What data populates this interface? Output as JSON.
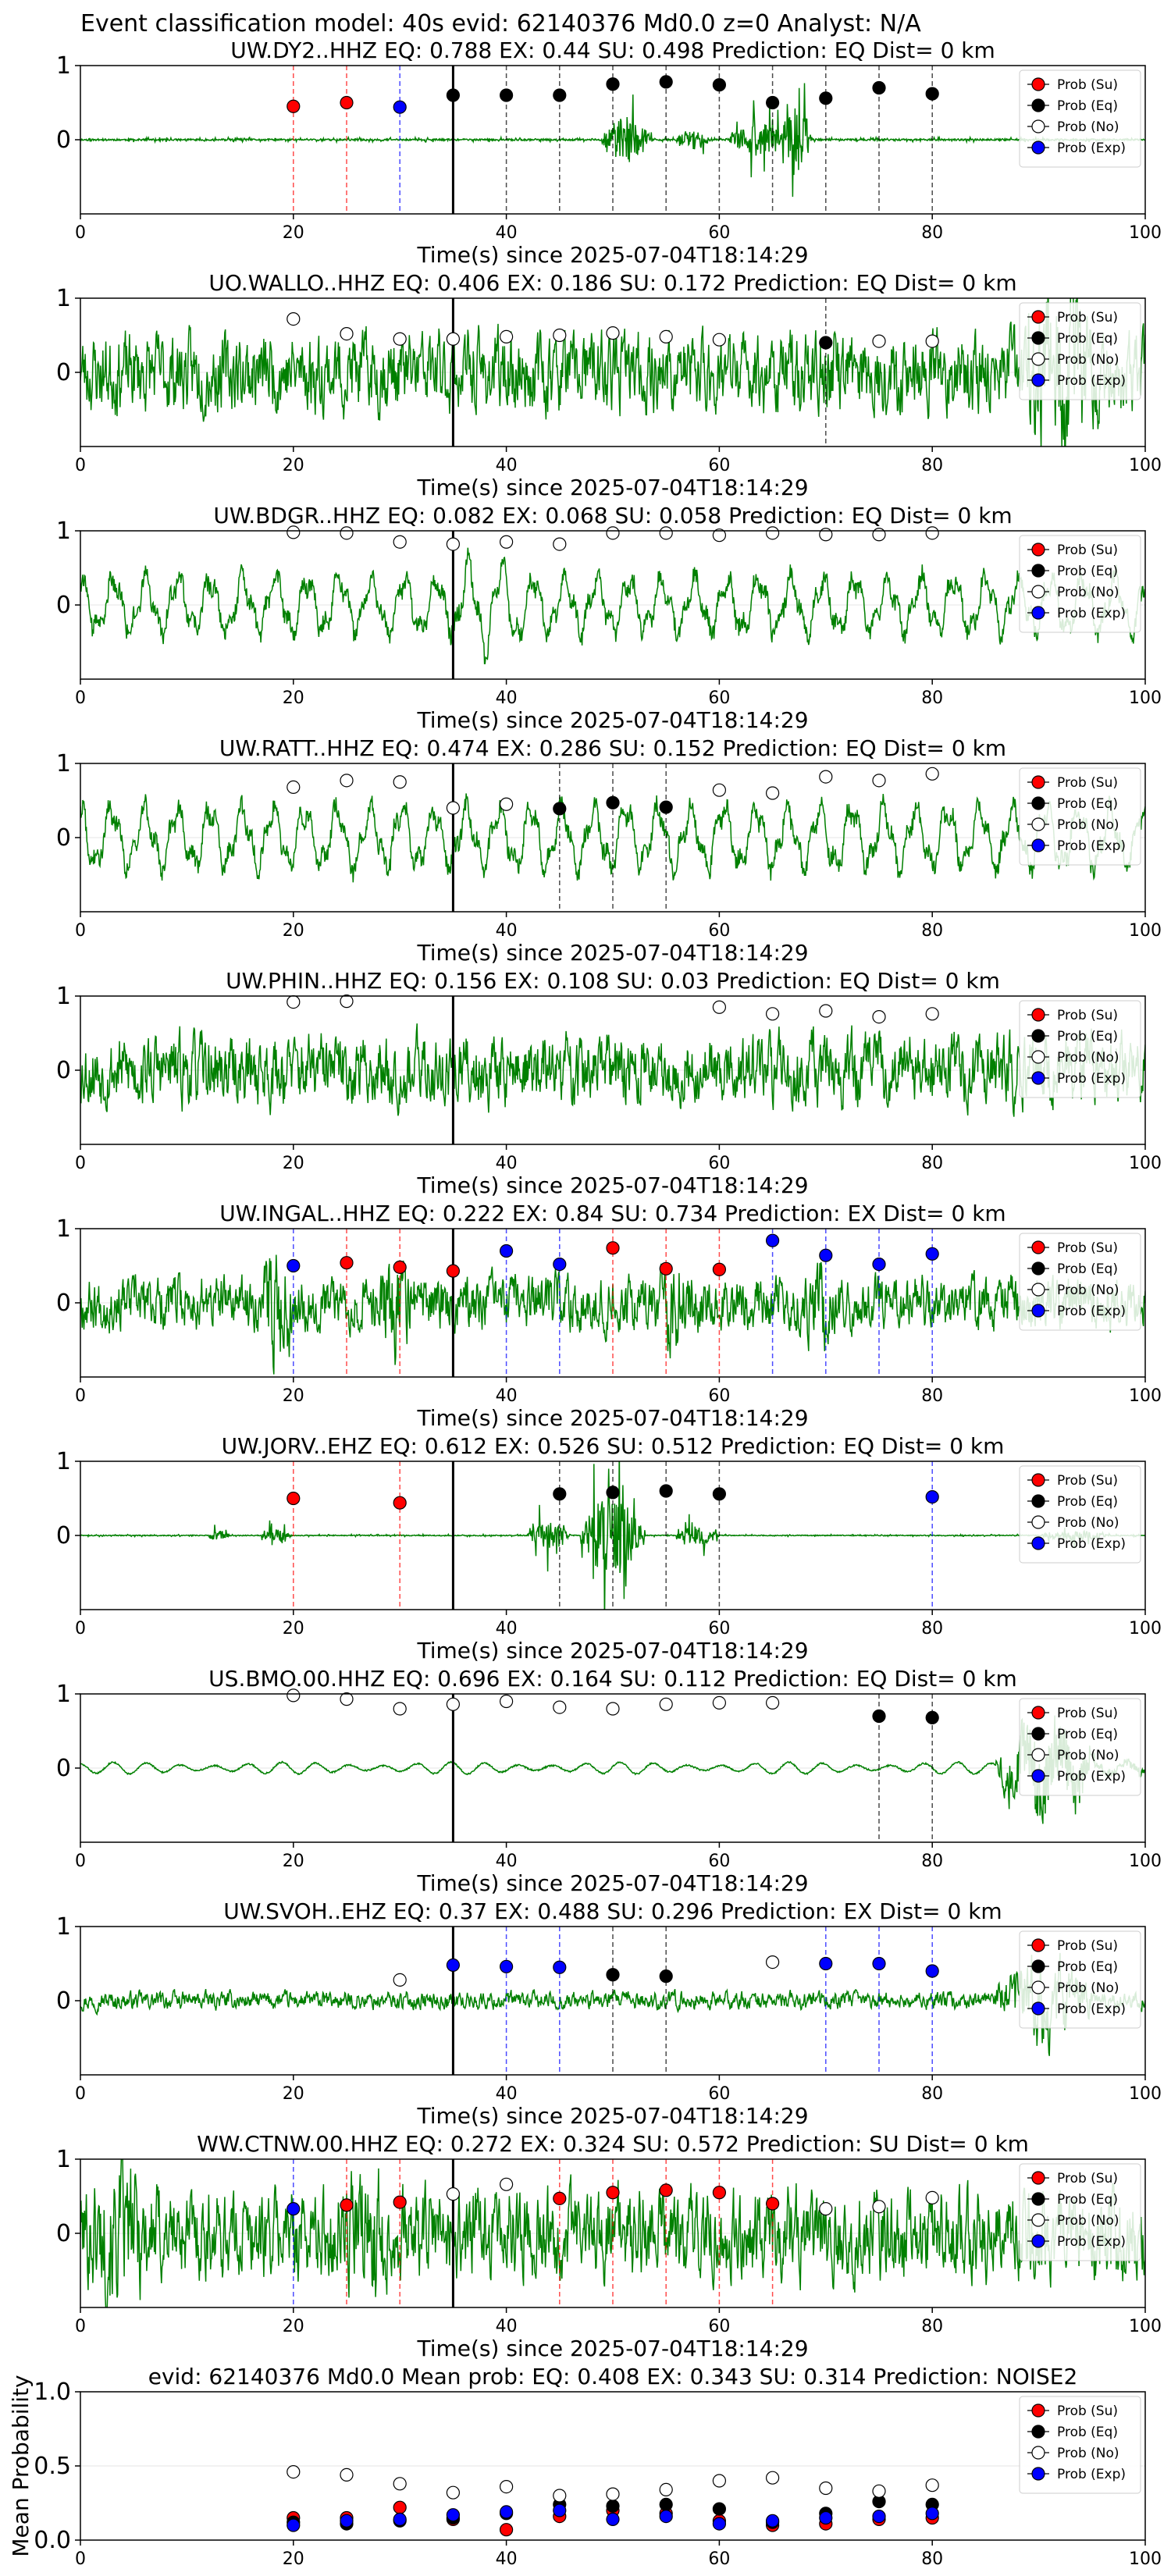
{
  "figure": {
    "suptitle": "Event classification model: 40s evid: 62140376 Md0.0 z=0 Analyst: N/A",
    "xlabel": "Time(s) since 2025-07-04T18:14:29"
  },
  "legend_labels": [
    "Prob (Su)",
    "Prob (Eq)",
    "Prob (No)",
    "Prob (Exp)"
  ],
  "colors": {
    "su": "#ff0000",
    "eq": "#000000",
    "no": "#ffffff",
    "exp": "#0000ff",
    "waveform": "#008000",
    "grid": "#e6e6e6"
  },
  "chart_data": [
    {
      "type": "line",
      "station": "UW.DY2..HHZ",
      "title": "UW.DY2..HHZ   EQ: 0.788  EX: 0.44  SU: 0.498   Prediction: EQ    Dist= 0 km",
      "xlim": [
        0,
        100
      ],
      "ylim": [
        -1,
        1
      ],
      "yticks": [
        0,
        1
      ],
      "xticks": [
        0,
        20,
        40,
        60,
        80,
        100
      ],
      "pick_time": 35,
      "waveform": {
        "style": "impulsive",
        "seed": 11,
        "base": 0.02,
        "events": [
          [
            49,
            56,
            0.5
          ],
          [
            56,
            61,
            0.2
          ],
          [
            61,
            70,
            0.35
          ],
          [
            66,
            70,
            0.9
          ]
        ]
      },
      "points": [
        [
          20,
          0.45,
          "su"
        ],
        [
          25,
          0.5,
          "su"
        ],
        [
          30,
          0.44,
          "exp"
        ],
        [
          35,
          0.6,
          "eq"
        ],
        [
          40,
          0.6,
          "eq"
        ],
        [
          45,
          0.6,
          "eq"
        ],
        [
          50,
          0.75,
          "eq"
        ],
        [
          55,
          0.78,
          "eq"
        ],
        [
          60,
          0.74,
          "eq"
        ],
        [
          65,
          0.5,
          "eq"
        ],
        [
          70,
          0.56,
          "eq"
        ],
        [
          75,
          0.7,
          "eq"
        ],
        [
          80,
          0.62,
          "eq"
        ]
      ]
    },
    {
      "type": "line",
      "station": "UO.WALLO..HHZ",
      "title": "UO.WALLO..HHZ   EQ: 0.406  EX: 0.186  SU: 0.172   Prediction: EQ    Dist= 0 km",
      "xlim": [
        0,
        100
      ],
      "ylim": [
        -1,
        1
      ],
      "yticks": [
        0,
        1
      ],
      "xticks": [
        0,
        20,
        40,
        60,
        80,
        100
      ],
      "pick_time": 35,
      "waveform": {
        "style": "noisy",
        "seed": 23,
        "base": 0.45,
        "events": [
          [
            88,
            100,
            0.5
          ]
        ]
      },
      "points": [
        [
          20,
          0.72,
          "no"
        ],
        [
          25,
          0.52,
          "no"
        ],
        [
          30,
          0.45,
          "no"
        ],
        [
          35,
          0.45,
          "no"
        ],
        [
          40,
          0.48,
          "no"
        ],
        [
          45,
          0.5,
          "no"
        ],
        [
          50,
          0.53,
          "no"
        ],
        [
          55,
          0.48,
          "no"
        ],
        [
          60,
          0.44,
          "no"
        ],
        [
          70,
          0.4,
          "eq"
        ],
        [
          75,
          0.42,
          "no"
        ],
        [
          80,
          0.42,
          "no"
        ]
      ]
    },
    {
      "type": "line",
      "station": "UW.BDGR..HHZ",
      "title": "UW.BDGR..HHZ   EQ: 0.082  EX: 0.068  SU: 0.058   Prediction: EQ    Dist= 0 km",
      "xlim": [
        0,
        100
      ],
      "ylim": [
        -1,
        1
      ],
      "yticks": [
        0,
        1
      ],
      "xticks": [
        0,
        20,
        40,
        60,
        80,
        100
      ],
      "pick_time": 35,
      "waveform": {
        "style": "wavy",
        "seed": 37,
        "base": 0.5,
        "events": [
          [
            35,
            45,
            0.35
          ]
        ]
      },
      "points": [
        [
          20,
          0.98,
          "no"
        ],
        [
          25,
          0.97,
          "no"
        ],
        [
          30,
          0.85,
          "no"
        ],
        [
          35,
          0.82,
          "no"
        ],
        [
          40,
          0.85,
          "no"
        ],
        [
          45,
          0.82,
          "no"
        ],
        [
          50,
          0.97,
          "no"
        ],
        [
          55,
          0.97,
          "no"
        ],
        [
          60,
          0.94,
          "no"
        ],
        [
          65,
          0.97,
          "no"
        ],
        [
          70,
          0.95,
          "no"
        ],
        [
          75,
          0.95,
          "no"
        ],
        [
          80,
          0.97,
          "no"
        ]
      ]
    },
    {
      "type": "line",
      "station": "UW.RATT..HHZ",
      "title": "UW.RATT..HHZ   EQ: 0.474  EX: 0.286  SU: 0.152   Prediction: EQ    Dist= 0 km",
      "xlim": [
        0,
        100
      ],
      "ylim": [
        -1,
        1
      ],
      "yticks": [
        0,
        1
      ],
      "xticks": [
        0,
        20,
        40,
        60,
        80,
        100
      ],
      "pick_time": 35,
      "waveform": {
        "style": "wavy",
        "seed": 41,
        "base": 0.55,
        "events": []
      },
      "points": [
        [
          20,
          0.68,
          "no"
        ],
        [
          25,
          0.77,
          "no"
        ],
        [
          30,
          0.75,
          "no"
        ],
        [
          35,
          0.4,
          "no"
        ],
        [
          40,
          0.45,
          "no"
        ],
        [
          45,
          0.39,
          "eq"
        ],
        [
          50,
          0.47,
          "eq"
        ],
        [
          55,
          0.41,
          "eq"
        ],
        [
          60,
          0.64,
          "no"
        ],
        [
          65,
          0.6,
          "no"
        ],
        [
          70,
          0.82,
          "no"
        ],
        [
          75,
          0.77,
          "no"
        ],
        [
          80,
          0.86,
          "no"
        ]
      ]
    },
    {
      "type": "line",
      "station": "UW.PHIN..HHZ",
      "title": "UW.PHIN..HHZ   EQ: 0.156  EX: 0.108  SU: 0.03   Prediction: EQ    Dist= 0 km",
      "xlim": [
        0,
        100
      ],
      "ylim": [
        -1,
        1
      ],
      "yticks": [
        0,
        1
      ],
      "xticks": [
        0,
        20,
        40,
        60,
        80,
        100
      ],
      "pick_time": 35,
      "waveform": {
        "style": "noisy",
        "seed": 53,
        "base": 0.4,
        "events": []
      },
      "points": [
        [
          20,
          0.92,
          "no"
        ],
        [
          25,
          0.93,
          "no"
        ],
        [
          60,
          0.85,
          "no"
        ],
        [
          65,
          0.76,
          "no"
        ],
        [
          70,
          0.8,
          "no"
        ],
        [
          75,
          0.72,
          "no"
        ],
        [
          80,
          0.76,
          "no"
        ]
      ]
    },
    {
      "type": "line",
      "station": "UW.INGAL..HHZ",
      "title": "UW.INGAL..HHZ   EQ: 0.222  EX: 0.84  SU: 0.734   Prediction: EX    Dist= 0 km",
      "xlim": [
        0,
        100
      ],
      "ylim": [
        -1,
        1
      ],
      "yticks": [
        0,
        1
      ],
      "xticks": [
        0,
        20,
        40,
        60,
        80,
        100
      ],
      "pick_time": 35,
      "waveform": {
        "style": "noisy",
        "seed": 67,
        "base": 0.3,
        "events": [
          [
            17,
            22,
            0.4
          ],
          [
            28,
            33,
            0.3
          ],
          [
            54,
            60,
            0.25
          ],
          [
            68,
            72,
            0.25
          ]
        ]
      },
      "points": [
        [
          20,
          0.5,
          "exp"
        ],
        [
          25,
          0.54,
          "su"
        ],
        [
          30,
          0.48,
          "su"
        ],
        [
          35,
          0.43,
          "su"
        ],
        [
          40,
          0.7,
          "exp"
        ],
        [
          45,
          0.52,
          "exp"
        ],
        [
          50,
          0.74,
          "su"
        ],
        [
          55,
          0.46,
          "su"
        ],
        [
          60,
          0.45,
          "su"
        ],
        [
          65,
          0.84,
          "exp"
        ],
        [
          70,
          0.64,
          "exp"
        ],
        [
          75,
          0.52,
          "exp"
        ],
        [
          80,
          0.66,
          "exp"
        ]
      ]
    },
    {
      "type": "line",
      "station": "UW.JORV..EHZ",
      "title": "UW.JORV..EHZ   EQ: 0.612  EX: 0.526  SU: 0.512   Prediction: EQ    Dist= 0 km",
      "xlim": [
        0,
        100
      ],
      "ylim": [
        -1,
        1
      ],
      "yticks": [
        0,
        1
      ],
      "xticks": [
        0,
        20,
        40,
        60,
        80,
        100
      ],
      "pick_time": 35,
      "waveform": {
        "style": "impulsive",
        "seed": 71,
        "base": 0.01,
        "events": [
          [
            12,
            15,
            0.1
          ],
          [
            17,
            21,
            0.15
          ],
          [
            42,
            48,
            0.3
          ],
          [
            47,
            56,
            0.9
          ],
          [
            56,
            62,
            0.2
          ],
          [
            90,
            100,
            0.1
          ]
        ]
      },
      "points": [
        [
          20,
          0.5,
          "su"
        ],
        [
          30,
          0.44,
          "su"
        ],
        [
          45,
          0.56,
          "eq"
        ],
        [
          50,
          0.58,
          "eq"
        ],
        [
          55,
          0.6,
          "eq"
        ],
        [
          60,
          0.56,
          "eq"
        ],
        [
          80,
          0.52,
          "exp"
        ]
      ]
    },
    {
      "type": "line",
      "station": "US.BMO.00.HHZ",
      "title": "US.BMO.00.HHZ   EQ: 0.696  EX: 0.164  SU: 0.112   Prediction: EQ    Dist= 0 km",
      "xlim": [
        0,
        100
      ],
      "ylim": [
        -1,
        1
      ],
      "yticks": [
        0,
        1
      ],
      "xticks": [
        0,
        20,
        40,
        60,
        80,
        100
      ],
      "pick_time": 35,
      "waveform": {
        "style": "swell",
        "seed": 83,
        "base": 0.05,
        "events": [
          [
            86,
            100,
            0.45
          ]
        ]
      },
      "points": [
        [
          20,
          0.98,
          "no"
        ],
        [
          25,
          0.93,
          "no"
        ],
        [
          30,
          0.8,
          "no"
        ],
        [
          35,
          0.86,
          "no"
        ],
        [
          40,
          0.9,
          "no"
        ],
        [
          45,
          0.82,
          "no"
        ],
        [
          50,
          0.8,
          "no"
        ],
        [
          55,
          0.86,
          "no"
        ],
        [
          60,
          0.88,
          "no"
        ],
        [
          65,
          0.88,
          "no"
        ],
        [
          75,
          0.7,
          "eq"
        ],
        [
          80,
          0.68,
          "eq"
        ]
      ]
    },
    {
      "type": "line",
      "station": "UW.SVOH..EHZ",
      "title": "UW.SVOH..EHZ   EQ: 0.37  EX: 0.488  SU: 0.296   Prediction: EX    Dist= 0 km",
      "xlim": [
        0,
        100
      ],
      "ylim": [
        -1,
        1
      ],
      "yticks": [
        0,
        1
      ],
      "xticks": [
        0,
        20,
        40,
        60,
        80,
        100
      ],
      "pick_time": 35,
      "waveform": {
        "style": "noisy",
        "seed": 97,
        "base": 0.1,
        "events": [
          [
            86,
            100,
            0.4
          ]
        ]
      },
      "points": [
        [
          30,
          0.28,
          "no"
        ],
        [
          35,
          0.48,
          "exp"
        ],
        [
          40,
          0.46,
          "exp"
        ],
        [
          45,
          0.45,
          "exp"
        ],
        [
          50,
          0.35,
          "eq"
        ],
        [
          55,
          0.33,
          "eq"
        ],
        [
          65,
          0.52,
          "no"
        ],
        [
          70,
          0.5,
          "exp"
        ],
        [
          75,
          0.5,
          "exp"
        ],
        [
          80,
          0.4,
          "exp"
        ]
      ]
    },
    {
      "type": "line",
      "station": "WW.CTNW.00.HHZ",
      "title": "WW.CTNW.00.HHZ   EQ: 0.272  EX: 0.324  SU: 0.572   Prediction: SU    Dist= 0 km",
      "xlim": [
        0,
        100
      ],
      "ylim": [
        -1,
        1
      ],
      "yticks": [
        0,
        1
      ],
      "xticks": [
        0,
        20,
        40,
        60,
        80,
        100
      ],
      "pick_time": 35,
      "waveform": {
        "style": "noisy",
        "seed": 101,
        "base": 0.5,
        "events": [
          [
            0,
            12,
            0.3
          ],
          [
            24,
            32,
            0.3
          ]
        ]
      },
      "points": [
        [
          20,
          0.33,
          "exp"
        ],
        [
          25,
          0.38,
          "su"
        ],
        [
          30,
          0.42,
          "su"
        ],
        [
          35,
          0.53,
          "no"
        ],
        [
          40,
          0.66,
          "no"
        ],
        [
          45,
          0.47,
          "su"
        ],
        [
          50,
          0.55,
          "su"
        ],
        [
          55,
          0.58,
          "su"
        ],
        [
          60,
          0.55,
          "su"
        ],
        [
          65,
          0.4,
          "su"
        ],
        [
          70,
          0.33,
          "no"
        ],
        [
          75,
          0.36,
          "no"
        ],
        [
          80,
          0.48,
          "no"
        ]
      ]
    },
    {
      "type": "scatter",
      "station": "",
      "title": "evid: 62140376  Md0.0   Mean prob:   EQ: 0.408  EX: 0.343  SU: 0.314   Prediction: NOISE2",
      "xlim": [
        0,
        100
      ],
      "ylim": [
        0,
        1
      ],
      "yticks": [
        0,
        0.5,
        1
      ],
      "ytick_labels": [
        "0.0",
        "0.5",
        "1.0"
      ],
      "xticks": [
        0,
        20,
        40,
        60,
        80,
        100
      ],
      "ylabel": "Mean Probability",
      "series": [
        {
          "name": "Prob (Su)",
          "color": "su",
          "x": [
            20,
            25,
            30,
            35,
            40,
            45,
            50,
            55,
            60,
            65,
            70,
            75,
            80
          ],
          "values": [
            0.15,
            0.15,
            0.22,
            0.14,
            0.07,
            0.16,
            0.2,
            0.18,
            0.13,
            0.1,
            0.11,
            0.14,
            0.15
          ]
        },
        {
          "name": "Prob (Eq)",
          "color": "eq",
          "x": [
            20,
            25,
            30,
            35,
            40,
            45,
            50,
            55,
            60,
            65,
            70,
            75,
            80
          ],
          "values": [
            0.12,
            0.11,
            0.13,
            0.15,
            0.18,
            0.24,
            0.23,
            0.24,
            0.21,
            0.12,
            0.18,
            0.26,
            0.24
          ]
        },
        {
          "name": "Prob (No)",
          "color": "no",
          "x": [
            20,
            25,
            30,
            35,
            40,
            45,
            50,
            55,
            60,
            65,
            70,
            75,
            80
          ],
          "values": [
            0.46,
            0.44,
            0.38,
            0.32,
            0.36,
            0.3,
            0.31,
            0.34,
            0.4,
            0.42,
            0.35,
            0.33,
            0.37
          ]
        },
        {
          "name": "Prob (Exp)",
          "color": "exp",
          "x": [
            20,
            25,
            30,
            35,
            40,
            45,
            50,
            55,
            60,
            65,
            70,
            75,
            80
          ],
          "values": [
            0.1,
            0.13,
            0.14,
            0.17,
            0.19,
            0.2,
            0.14,
            0.16,
            0.11,
            0.13,
            0.15,
            0.16,
            0.18
          ]
        }
      ]
    }
  ]
}
